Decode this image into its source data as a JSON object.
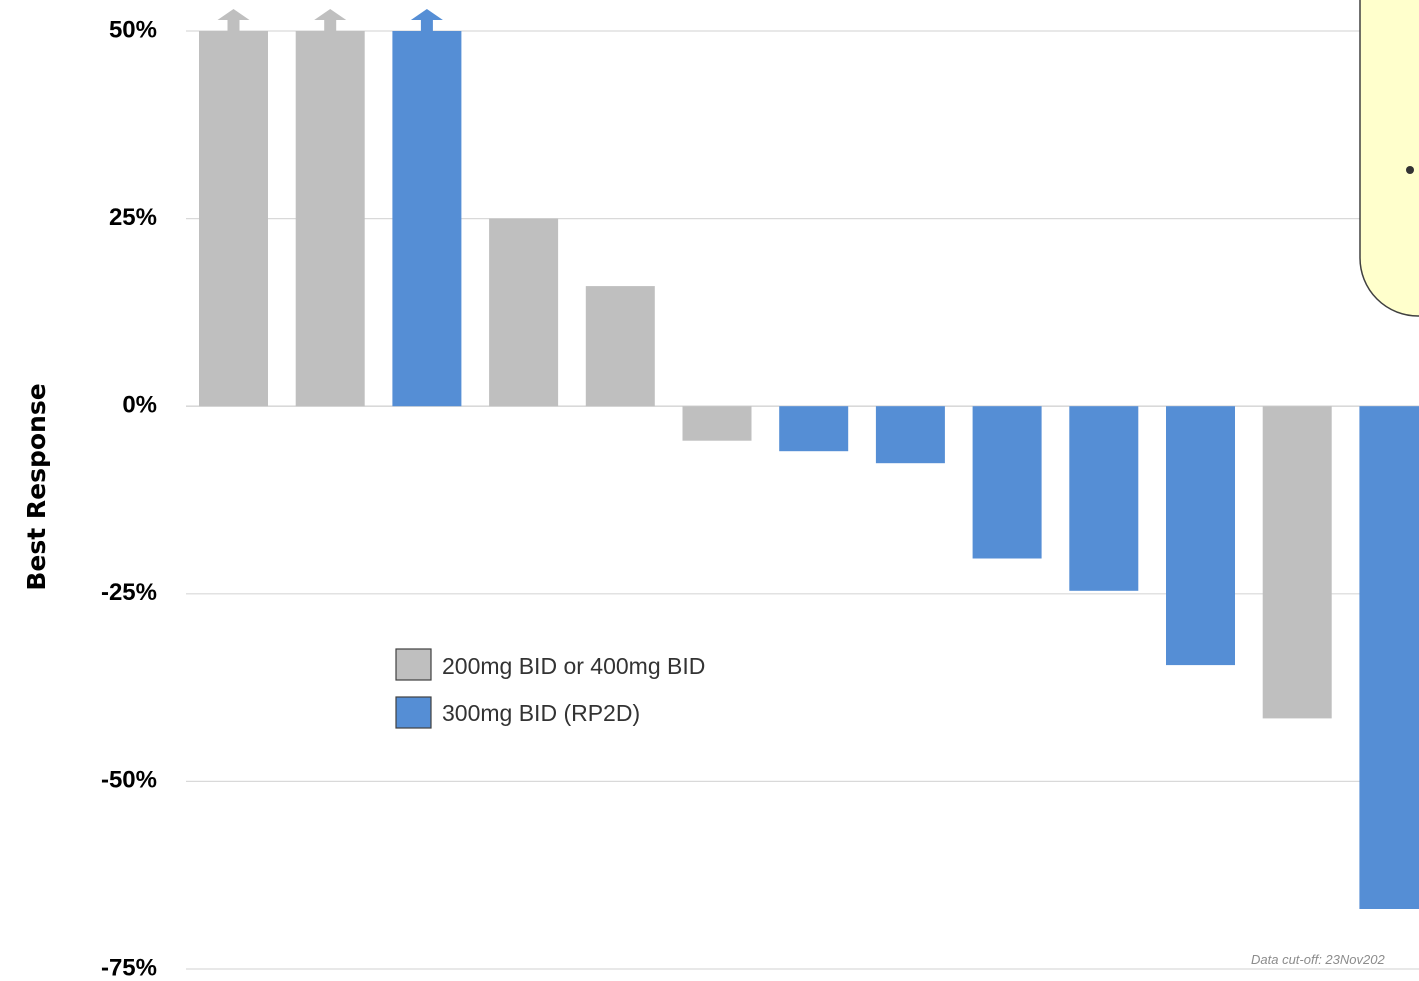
{
  "chart_data": {
    "type": "bar",
    "ylabel": "Best Response",
    "xlabel": "",
    "ylim": [
      -75,
      50
    ],
    "yticks": [
      50,
      25,
      0,
      -25,
      -50,
      -75
    ],
    "ytick_labels": [
      "50%",
      "25%",
      "0%",
      "-25%",
      "-50%",
      "-75%"
    ],
    "grid": true,
    "values": [
      50,
      50,
      50,
      25,
      16,
      -4.6,
      -6,
      -7.6,
      -20.3,
      -24.6,
      -34.5,
      -41.6,
      -67
    ],
    "groups": [
      "200mg BID or 400mg BID",
      "200mg BID or 400mg BID",
      "300mg BID (RP2D)",
      "200mg BID or 400mg BID",
      "200mg BID or 400mg BID",
      "200mg BID or 400mg BID",
      "300mg BID (RP2D)",
      "300mg BID (RP2D)",
      "300mg BID (RP2D)",
      "300mg BID (RP2D)",
      "300mg BID (RP2D)",
      "200mg BID or 400mg BID",
      "300mg BID (RP2D)"
    ],
    "capped_above_ylim": [
      true,
      true,
      true,
      false,
      false,
      false,
      false,
      false,
      false,
      false,
      false,
      false,
      false
    ],
    "legend": [
      {
        "label": "200mg BID or 400mg BID",
        "color": "#bfbfbf"
      },
      {
        "label": "300mg BID (RP2D)",
        "color": "#558ed5"
      }
    ],
    "legend_position": "center-left",
    "footnote": "Data cut-off: 23Nov202"
  },
  "colors": {
    "gray": "#bfbfbf",
    "blue": "#558ed5",
    "grid": "#d9d9d9",
    "callout_fill": "#ffffcc"
  }
}
